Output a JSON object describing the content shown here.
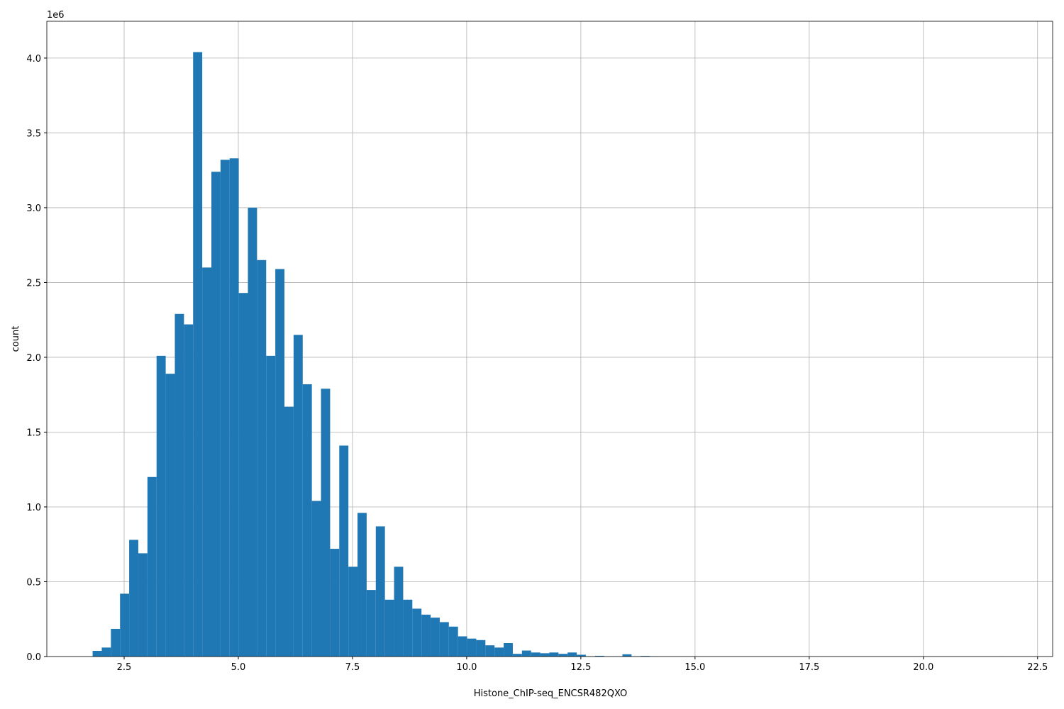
{
  "chart_data": {
    "type": "histogram",
    "xlabel": "Histone_ChIP-seq_ENCSR482QXO",
    "ylabel": "count",
    "y_offset_label": "1e6",
    "color": "#1f77b4",
    "grid": true,
    "bins": [
      1.81,
      2.01,
      2.21,
      2.41,
      2.61,
      2.81,
      3.01,
      3.21,
      3.41,
      3.61,
      3.81,
      4.01,
      4.21,
      4.41,
      4.61,
      4.81,
      5.01,
      5.21,
      5.41,
      5.61,
      5.81,
      6.01,
      6.21,
      6.41,
      6.61,
      6.81,
      7.01,
      7.21,
      7.41,
      7.61,
      7.81,
      8.01,
      8.21,
      8.41,
      8.61,
      8.81,
      9.01,
      9.21,
      9.41,
      9.61,
      9.81,
      10.01,
      10.21,
      10.41,
      10.61,
      10.81,
      11.01,
      11.21,
      11.41,
      11.61,
      11.81,
      12.01,
      12.21,
      12.41,
      12.61,
      12.81,
      13.01,
      13.21,
      13.41,
      13.61,
      13.81,
      14.01,
      14.21,
      14.41,
      14.61,
      14.81,
      15.01,
      15.21,
      15.41,
      15.61,
      15.81,
      16.01,
      16.21,
      16.41,
      16.61,
      16.81,
      17.01,
      17.21,
      17.41,
      17.61,
      17.81,
      18.01,
      18.21,
      18.41,
      18.61,
      18.81,
      19.01,
      19.21,
      19.41,
      19.61,
      19.81,
      20.01,
      20.21,
      20.41,
      20.61,
      20.81,
      21.01,
      21.21,
      21.41,
      21.61,
      21.81
    ],
    "values": [
      38000,
      60000,
      185000,
      420000,
      780000,
      690000,
      1200000,
      2010000,
      1890000,
      2290000,
      2220000,
      4040000,
      2600000,
      3240000,
      3320000,
      3330000,
      2430000,
      3000000,
      2650000,
      2010000,
      2590000,
      1670000,
      2150000,
      1820000,
      1040000,
      1790000,
      720000,
      1410000,
      600000,
      960000,
      445000,
      870000,
      380000,
      600000,
      380000,
      320000,
      280000,
      260000,
      230000,
      200000,
      135000,
      120000,
      110000,
      75000,
      60000,
      90000,
      18000,
      40000,
      27000,
      22000,
      27000,
      18000,
      27000,
      12000,
      2000,
      5000,
      1000,
      1000,
      15000,
      1000,
      4000,
      1000,
      0,
      0,
      0,
      0,
      0,
      0,
      0,
      0,
      0,
      0,
      0,
      0,
      0,
      0,
      0,
      0,
      0,
      0,
      0,
      0,
      0,
      0,
      0,
      0,
      0,
      0,
      0,
      0,
      0,
      0,
      0,
      0,
      0,
      0,
      0,
      0,
      0,
      500
    ],
    "xlim": [
      0.807,
      22.83
    ],
    "ylim": [
      0,
      4246000
    ],
    "xticks": [
      2.5,
      {
        "value": 5,
        "label": "5.0"
      },
      7.5,
      {
        "value": 10,
        "label": "10.0"
      },
      12.5,
      {
        "value": 15,
        "label": "15.0"
      },
      17.5,
      {
        "value": 20,
        "label": "20.0"
      },
      22.5
    ],
    "yticks": [
      {
        "value": 0,
        "label": "0.0"
      },
      {
        "value": 500000,
        "label": "0.5"
      },
      {
        "value": 1000000,
        "label": "1.0"
      },
      {
        "value": 1500000,
        "label": "1.5"
      },
      {
        "value": 2000000,
        "label": "2.0"
      },
      {
        "value": 2500000,
        "label": "2.5"
      },
      {
        "value": 3000000,
        "label": "3.0"
      },
      {
        "value": 3500000,
        "label": "3.5"
      },
      {
        "value": 4000000,
        "label": "4.0"
      }
    ]
  }
}
